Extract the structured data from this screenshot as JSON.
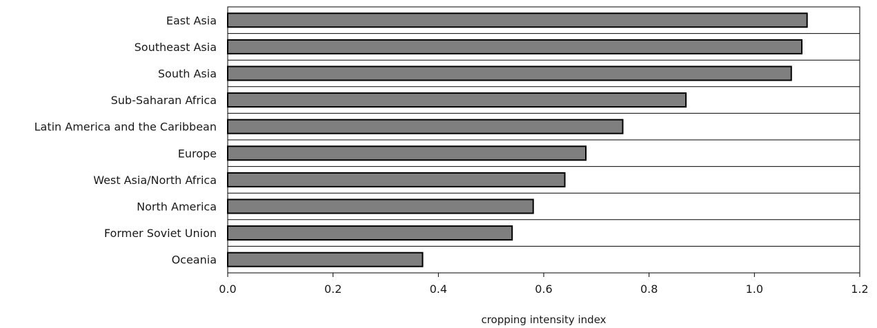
{
  "chart_data": {
    "type": "bar",
    "orientation": "horizontal",
    "categories": [
      "East Asia",
      "Southeast Asia",
      "South Asia",
      "Sub-Saharan Africa",
      "Latin America and the Caribbean",
      "Europe",
      "West Asia/North Africa",
      "North America",
      "Former Soviet Union",
      "Oceania"
    ],
    "values": [
      1.1,
      1.09,
      1.07,
      0.87,
      0.75,
      0.68,
      0.64,
      0.58,
      0.54,
      0.37
    ],
    "xlabel": "cropping intensity index",
    "ylabel": "",
    "xlim": [
      0,
      1.2
    ],
    "xticks": [
      "0.0",
      "0.2",
      "0.4",
      "0.6",
      "0.8",
      "1.0",
      "1.2"
    ],
    "grid": "horizontal category separators",
    "legend": "none",
    "bar_color": "#7f7f7f",
    "bar_edge_color": "#000000"
  }
}
